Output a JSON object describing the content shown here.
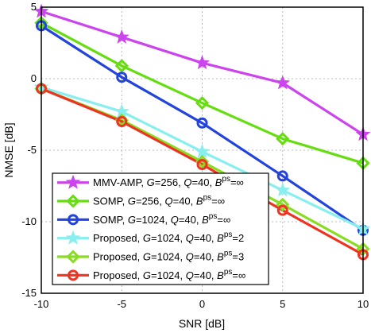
{
  "chart_data": {
    "type": "line",
    "title": "",
    "xlabel": "SNR [dB]",
    "ylabel": "NMSE [dB]",
    "xlim": [
      -10,
      10
    ],
    "ylim": [
      -15,
      5
    ],
    "x": [
      -10,
      -5,
      0,
      5,
      10
    ],
    "xticks": [
      "-10",
      "-5",
      "0",
      "5",
      "10"
    ],
    "yticks": [
      "5",
      "0",
      "-5",
      "-10",
      "-15"
    ],
    "grid": true,
    "legend_position": "bottom-left",
    "series": [
      {
        "name": "MMV-AMP, G=256, Q=40, Bps=∞",
        "label_main": "MMV-AMP, ",
        "label_G": "G",
        "label_mid": "=256, ",
        "label_Q": "Q",
        "label_tail": "=40, ",
        "label_B": "B",
        "label_sup": "ps",
        "label_end": "=∞",
        "color": "#cc44ee",
        "marker": "star",
        "values": [
          4.7,
          2.9,
          1.1,
          -0.3,
          -3.9
        ]
      },
      {
        "name": "SOMP, G=256, Q=40, Bps=∞",
        "label_main": "SOMP, ",
        "label_G": "G",
        "label_mid": "=256, ",
        "label_Q": "Q",
        "label_tail": "=40, ",
        "label_B": "B",
        "label_sup": "ps",
        "label_end": "=∞",
        "color": "#66dd11",
        "marker": "diamond",
        "values": [
          3.9,
          0.9,
          -1.7,
          -4.2,
          -5.9
        ]
      },
      {
        "name": "SOMP, G=1024, Q=40, Bps=∞",
        "label_main": "SOMP, ",
        "label_G": "G",
        "label_mid": "=1024, ",
        "label_Q": "Q",
        "label_tail": "=40, ",
        "label_B": "B",
        "label_sup": "ps",
        "label_end": "=∞",
        "color": "#2244dd",
        "marker": "circle",
        "values": [
          3.7,
          0.1,
          -3.1,
          -6.8,
          -10.6
        ]
      },
      {
        "name": "Proposed, G=1024, Q=40, Bps=2",
        "label_main": "Proposed, ",
        "label_G": "G",
        "label_mid": "=1024, ",
        "label_Q": "Q",
        "label_tail": "=40, ",
        "label_B": "B",
        "label_sup": "ps",
        "label_end": "=2",
        "color": "#88eeee",
        "marker": "star",
        "values": [
          -0.6,
          -2.3,
          -5.1,
          -7.8,
          -10.5
        ]
      },
      {
        "name": "Proposed, G=1024, Q=40, Bps=3",
        "label_main": "Proposed, ",
        "label_G": "G",
        "label_mid": "=1024, ",
        "label_Q": "Q",
        "label_tail": "=40, ",
        "label_B": "B",
        "label_sup": "ps",
        "label_end": "=3",
        "color": "#88dd22",
        "marker": "diamond",
        "values": [
          -0.7,
          -2.9,
          -5.8,
          -8.8,
          -11.9
        ]
      },
      {
        "name": "Proposed, G=1024, Q=40, Bps=∞",
        "label_main": "Proposed, ",
        "label_G": "G",
        "label_mid": "=1024, ",
        "label_Q": "Q",
        "label_tail": "=40, ",
        "label_B": "B",
        "label_sup": "ps",
        "label_end": "=∞",
        "color": "#ee3322",
        "marker": "circle",
        "values": [
          -0.7,
          -3.0,
          -6.0,
          -9.2,
          -12.3
        ]
      }
    ]
  }
}
